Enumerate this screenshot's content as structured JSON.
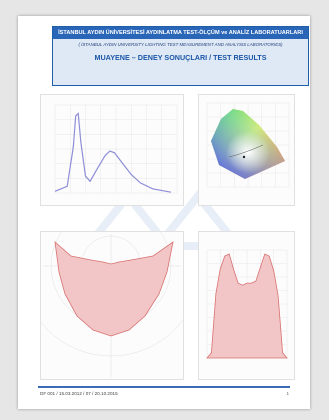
{
  "header": {
    "institution": "İSTANBUL AYDIN ÜNİVERSİTESİ AYDINLATMA TEST-ÖLÇÜM ve ANALİZ LABORATUARLARI",
    "institution_en": "( İSTANBUL AYDIN UNIVERSITY LIGHTING TEST MEASUREMENT AND ANALYSIS LABORATORIES)",
    "title": "MUAYENE – DENEY SONUÇLARI / TEST RESULTS"
  },
  "charts": {
    "spectrum": {
      "type": "line",
      "color": "#8e8ed8",
      "points": [
        [
          380,
          0.02
        ],
        [
          420,
          0.08
        ],
        [
          440,
          0.55
        ],
        [
          448,
          0.92
        ],
        [
          456,
          0.95
        ],
        [
          465,
          0.6
        ],
        [
          480,
          0.2
        ],
        [
          495,
          0.14
        ],
        [
          520,
          0.3
        ],
        [
          545,
          0.45
        ],
        [
          560,
          0.5
        ],
        [
          575,
          0.48
        ],
        [
          600,
          0.36
        ],
        [
          630,
          0.22
        ],
        [
          660,
          0.12
        ],
        [
          700,
          0.05
        ],
        [
          760,
          0.01
        ]
      ],
      "xlim": [
        380,
        780
      ],
      "ylim": [
        0,
        1.05
      ]
    },
    "cie": {
      "type": "chromaticity",
      "point": [
        0.33,
        0.34
      ]
    },
    "polar": {
      "type": "area",
      "color": "#e48e8e"
    },
    "intensity": {
      "type": "area",
      "color": "#e48e8e",
      "points": [
        [
          -90,
          0
        ],
        [
          -80,
          0.05
        ],
        [
          -70,
          0.62
        ],
        [
          -60,
          0.86
        ],
        [
          -50,
          0.98
        ],
        [
          -40,
          1.0
        ],
        [
          -30,
          0.85
        ],
        [
          -20,
          0.72
        ],
        [
          -10,
          0.7
        ],
        [
          0,
          0.72
        ],
        [
          10,
          0.72
        ],
        [
          20,
          0.74
        ],
        [
          30,
          0.87
        ],
        [
          40,
          1.0
        ],
        [
          50,
          0.98
        ],
        [
          60,
          0.84
        ],
        [
          70,
          0.6
        ],
        [
          80,
          0.05
        ],
        [
          90,
          0
        ]
      ]
    }
  },
  "footer": {
    "doc_ref": "DF 001 / 15.03.2012 / 07 / 20.10.2015",
    "page": "1"
  }
}
